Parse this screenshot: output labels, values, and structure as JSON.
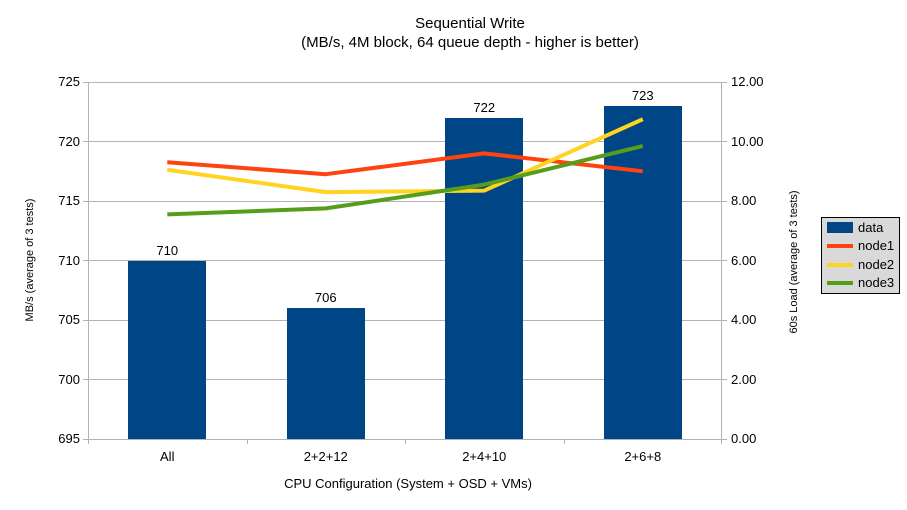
{
  "chart_data": {
    "type": "bar",
    "title": "Sequential Write",
    "subtitle": "(MB/s, 4M block, 64 queue depth - higher is better)",
    "categories": [
      "All",
      "2+2+12",
      "2+4+10",
      "2+6+8"
    ],
    "xlabel": "CPU Configuration (System + OSD + VMs)",
    "grid": "horizontal-only",
    "legend_position": "right-middle",
    "left_axis": {
      "title": "MB/s (average of 3 tests)",
      "min": 695,
      "max": 725,
      "step": 5,
      "tick_labels": [
        "695",
        "700",
        "705",
        "710",
        "715",
        "720",
        "725"
      ]
    },
    "right_axis": {
      "title": "60s Load (average of 3 tests)",
      "min": 0,
      "max": 12,
      "step": 2,
      "tick_labels": [
        "0.00",
        "2.00",
        "4.00",
        "6.00",
        "8.00",
        "10.00",
        "12.00"
      ]
    },
    "bar_series": {
      "name": "data",
      "axis": "left",
      "color": "#004586",
      "values": [
        710,
        706,
        722,
        723
      ],
      "data_labels": [
        "710",
        "706",
        "722",
        "723"
      ]
    },
    "line_series": [
      {
        "name": "node1",
        "axis": "right",
        "color": "#FF420E",
        "values": [
          9.3,
          8.9,
          9.6,
          9.0
        ]
      },
      {
        "name": "node2",
        "axis": "right",
        "color": "#FFD320",
        "values": [
          9.05,
          8.3,
          8.35,
          10.75
        ]
      },
      {
        "name": "node3",
        "axis": "right",
        "color": "#579D1C",
        "values": [
          7.55,
          7.75,
          8.55,
          9.85
        ]
      }
    ],
    "legend_entries": [
      "data",
      "node1",
      "node2",
      "node3"
    ]
  },
  "colors": {
    "gridline": "#b3b3b3",
    "legend_background": "#d9d9d9",
    "text": "#000000",
    "background": "#ffffff"
  }
}
